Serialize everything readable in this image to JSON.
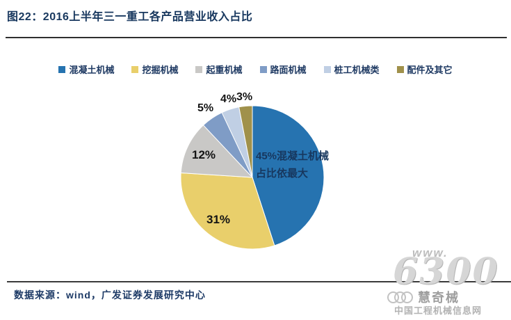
{
  "figure": {
    "title": "图22：2016上半年三一重工各产品营业收入占比",
    "source_note": "数据来源：wind，广发证券发展研究中心"
  },
  "colors": {
    "title_text": "#17375e",
    "concrete_blue": "#2673b0",
    "excavator_yellow": "#e9cf6b",
    "crane_gray": "#c9c8c6",
    "road_blue": "#7f9cc6",
    "piling_lightblue": "#c0cfe4",
    "parts_olive": "#a0914b"
  },
  "chart_data": {
    "type": "pie",
    "title": "2016上半年三一重工各产品营业收入占比",
    "unit": "%",
    "legend_position": "top",
    "direction": "clockwise",
    "start_angle_deg": 0,
    "slices": [
      {
        "name": "混凝土机械",
        "value": 45,
        "color": "#2673b0",
        "label": "45%混凝土机械占比依最大"
      },
      {
        "name": "挖掘机械",
        "value": 31,
        "color": "#e9cf6b",
        "label": "31%"
      },
      {
        "name": "起重机械",
        "value": 12,
        "color": "#c9c8c6",
        "label": "12%"
      },
      {
        "name": "路面机械",
        "value": 5,
        "color": "#7f9cc6",
        "label": "5%"
      },
      {
        "name": "桩工机械类",
        "value": 4,
        "color": "#c0cfe4",
        "label": "4%"
      },
      {
        "name": "配件及其它",
        "value": 3,
        "color": "#a0914b",
        "label": "3%"
      }
    ]
  },
  "watermark": {
    "www": "www.",
    "number": "6300",
    "brand": "慧奇械",
    "site": "中国工程机械信息网"
  }
}
